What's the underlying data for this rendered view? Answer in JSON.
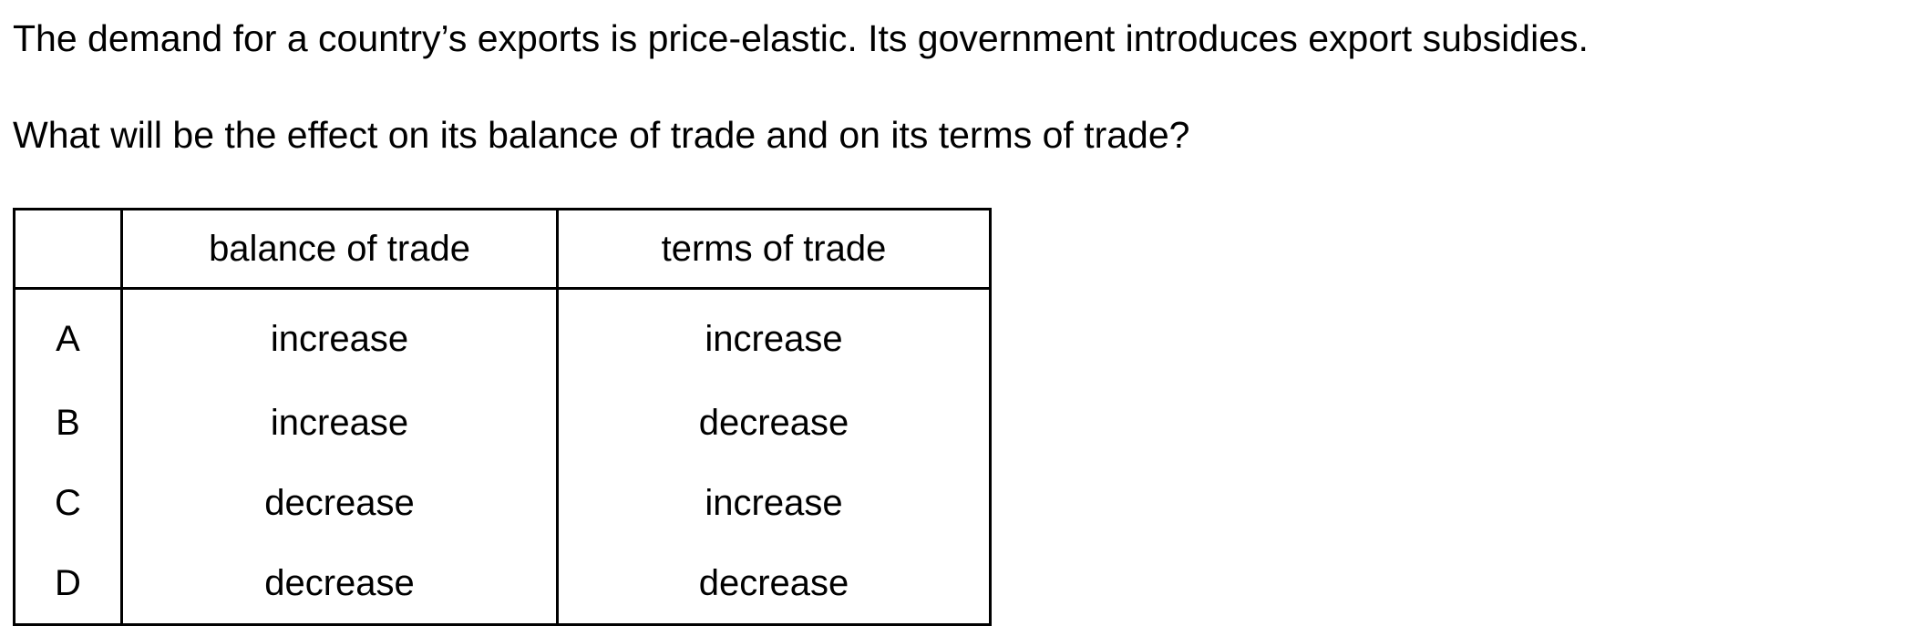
{
  "question": {
    "stem": "The demand for a country’s exports is price-elastic. Its government introduces export subsidies.",
    "prompt": "What will be the effect on its balance of trade and on its terms of trade?"
  },
  "table": {
    "headers": [
      "",
      "balance of trade",
      "terms of trade"
    ],
    "rows": [
      {
        "key": "A",
        "balance": "increase",
        "terms": "increase"
      },
      {
        "key": "B",
        "balance": "increase",
        "terms": "decrease"
      },
      {
        "key": "C",
        "balance": "decrease",
        "terms": "increase"
      },
      {
        "key": "D",
        "balance": "decrease",
        "terms": "decrease"
      }
    ]
  }
}
